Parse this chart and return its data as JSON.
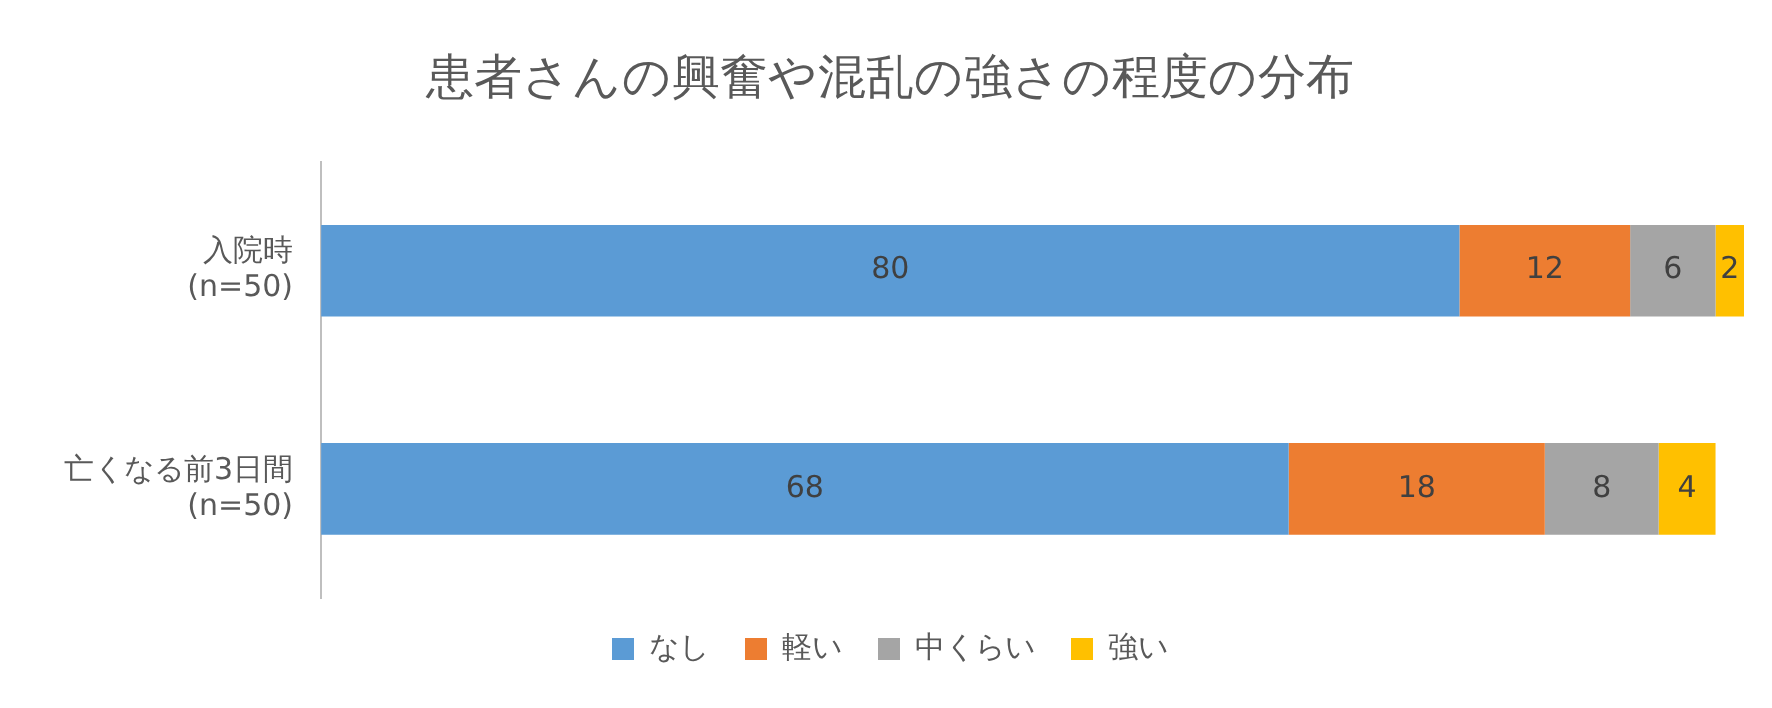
{
  "chart_data": {
    "type": "bar",
    "orientation": "horizontal",
    "stacked": true,
    "title": "患者さんの興奮や混乱の強さの程度の分布",
    "categories": [
      "入院時\n(n=50)",
      "亡くなる前3日間\n(n=50)"
    ],
    "series": [
      {
        "name": "なし",
        "color": "#5b9bd5",
        "values": [
          80,
          68
        ]
      },
      {
        "name": "軽い",
        "color": "#ed7d31",
        "values": [
          12,
          18
        ]
      },
      {
        "name": "中くらい",
        "color": "#a5a5a5",
        "values": [
          6,
          8
        ]
      },
      {
        "name": "強い",
        "color": "#ffc000",
        "values": [
          2,
          4
        ]
      }
    ],
    "data_labels": true,
    "legend": "bottom"
  }
}
